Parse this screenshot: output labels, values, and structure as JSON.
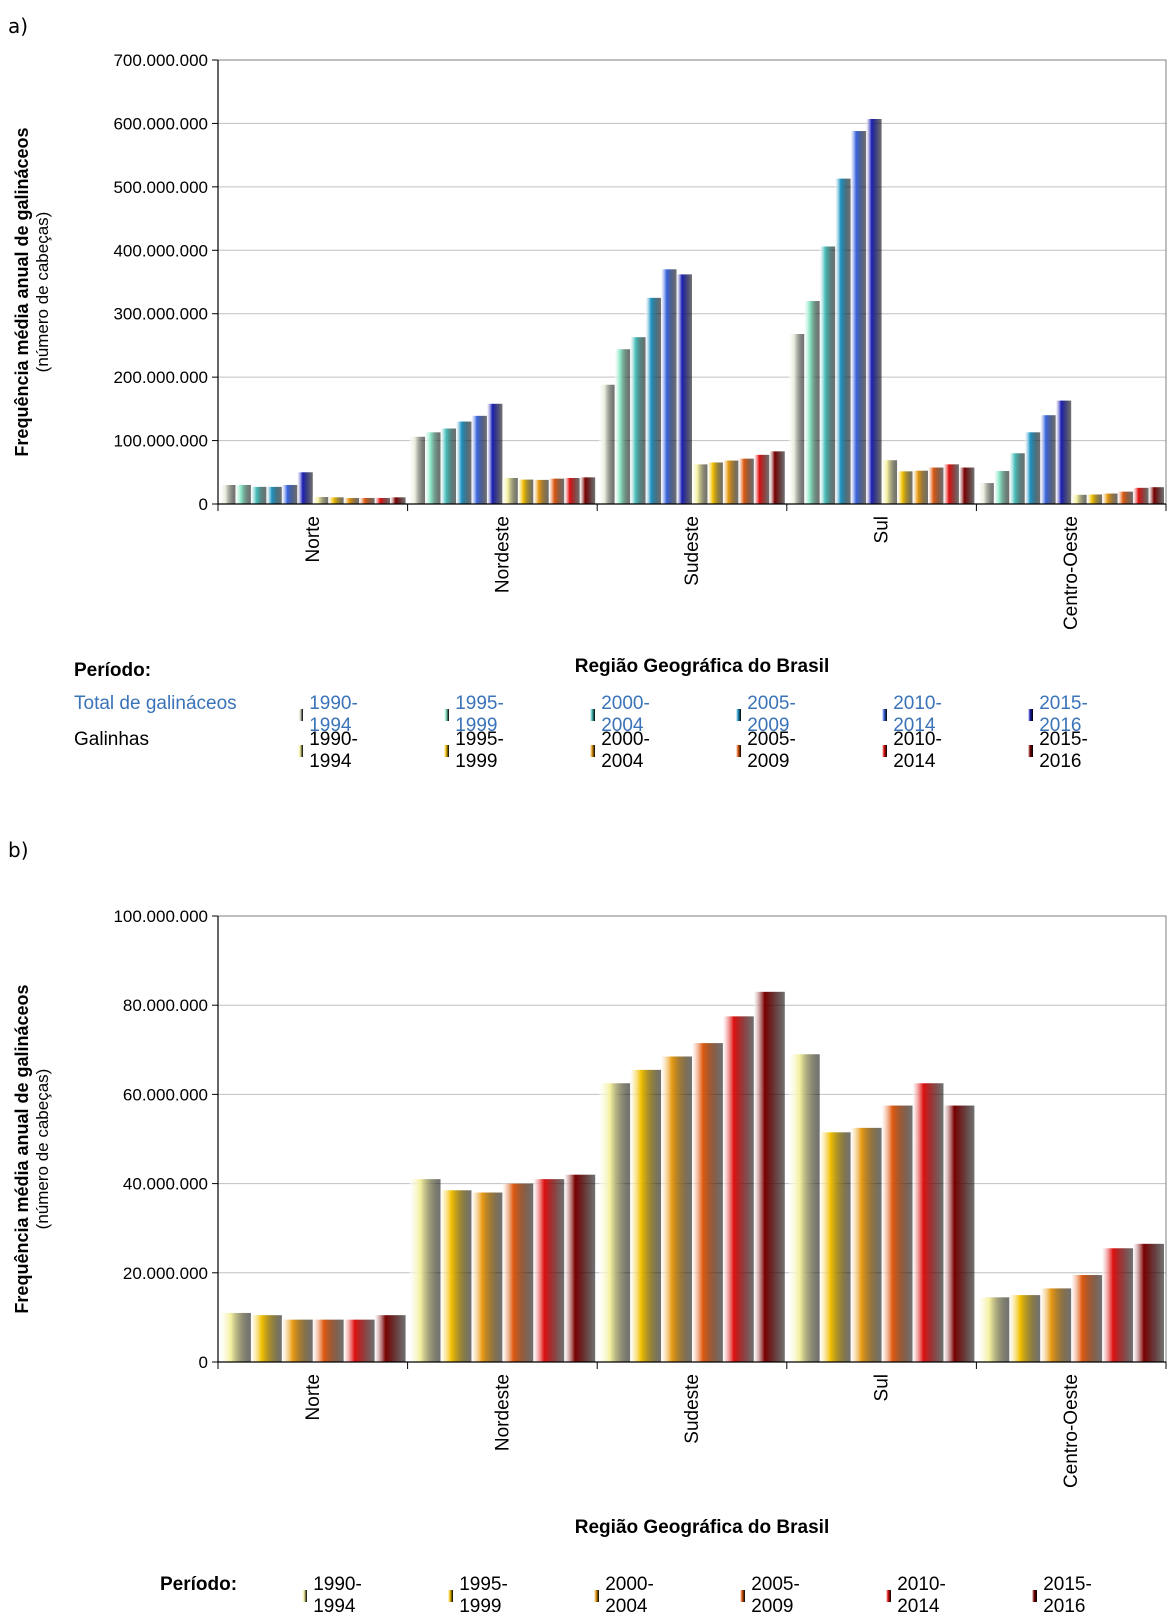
{
  "panels": [
    {
      "label": "a)",
      "legend": {
        "title": "Período:",
        "rows": [
          {
            "name": "Total de galináceos",
            "color": "#3a73b8",
            "items": [
              "1990-1994",
              "1995-1999",
              "2000-2004",
              "2005-2009",
              "2010-2014",
              "2015-2016"
            ]
          },
          {
            "name": "Galinhas",
            "color": "#000000",
            "items": [
              "1990-1994",
              "1995-1999",
              "2000-2004",
              "2005-2009",
              "2010-2014",
              "2015-2016"
            ]
          }
        ]
      }
    },
    {
      "label": "b)",
      "legend": {
        "title": "Período:",
        "rows": [
          {
            "name": "",
            "color": "#000000",
            "items": [
              "1990-1994",
              "1995-1999",
              "2000-2004",
              "2005-2009",
              "2010-2014",
              "2015-2016"
            ]
          }
        ]
      }
    }
  ],
  "palette": {
    "total": [
      "#e8eddc",
      "#8de8c8",
      "#4ac0bc",
      "#1f95c4",
      "#3a66e0",
      "#1c1fb4"
    ],
    "galinhas": [
      "#f4f0a0",
      "#f2c000",
      "#e89a12",
      "#e05a10",
      "#e01010",
      "#7a0000"
    ]
  },
  "chart_data": [
    {
      "type": "bar",
      "categories": [
        "Norte",
        "Nordeste",
        "Sudeste",
        "Sul",
        "Centro-Oeste"
      ],
      "ylabel": "Frequência média anual  de galináceos",
      "ylabel2": "(número de cabeças)",
      "xlabel": "Região Geográfica do Brasil",
      "ylim": [
        0,
        700000000
      ],
      "yticks": [
        0,
        100000000,
        200000000,
        300000000,
        400000000,
        500000000,
        600000000,
        700000000
      ],
      "ytick_labels": [
        "0",
        "100.000.000",
        "200.000.000",
        "300.000.000",
        "400.000.000",
        "500.000.000",
        "600.000.000",
        "700.000.000"
      ],
      "grid": true,
      "series": [
        {
          "name": "Total de galináceos 1990-1994",
          "values": [
            30000000,
            106000000,
            188000000,
            268000000,
            33000000
          ]
        },
        {
          "name": "Total de galináceos 1995-1999",
          "values": [
            30000000,
            113000000,
            244000000,
            320000000,
            52000000
          ]
        },
        {
          "name": "Total de galináceos 2000-2004",
          "values": [
            27000000,
            119000000,
            263000000,
            406000000,
            80000000
          ]
        },
        {
          "name": "Total de galináceos 2005-2009",
          "values": [
            27000000,
            130000000,
            325000000,
            513000000,
            113000000
          ]
        },
        {
          "name": "Total de galináceos 2010-2014",
          "values": [
            30000000,
            139000000,
            370000000,
            588000000,
            140000000
          ]
        },
        {
          "name": "Total de galináceos 2015-2016",
          "values": [
            50000000,
            158000000,
            362000000,
            607000000,
            163000000
          ]
        },
        {
          "name": "Galinhas 1990-1994",
          "values": [
            11000000,
            41000000,
            62500000,
            69000000,
            14500000
          ]
        },
        {
          "name": "Galinhas 1995-1999",
          "values": [
            10500000,
            38500000,
            65500000,
            51500000,
            15000000
          ]
        },
        {
          "name": "Galinhas 2000-2004",
          "values": [
            9500000,
            38000000,
            68500000,
            52500000,
            16500000
          ]
        },
        {
          "name": "Galinhas 2005-2009",
          "values": [
            9500000,
            40000000,
            71500000,
            57500000,
            19500000
          ]
        },
        {
          "name": "Galinhas 2010-2014",
          "values": [
            9500000,
            41000000,
            77500000,
            62500000,
            25500000
          ]
        },
        {
          "name": "Galinhas 2015-2016",
          "values": [
            10500000,
            42000000,
            83000000,
            57500000,
            26500000
          ]
        }
      ]
    },
    {
      "type": "bar",
      "categories": [
        "Norte",
        "Nordeste",
        "Sudeste",
        "Sul",
        "Centro-Oeste"
      ],
      "ylabel": "Frequência média anual  de galináceos",
      "ylabel2": "(número de cabeças)",
      "xlabel": "Região Geográfica do Brasil",
      "ylim": [
        0,
        100000000
      ],
      "yticks": [
        0,
        20000000,
        40000000,
        60000000,
        80000000,
        100000000
      ],
      "ytick_labels": [
        "0",
        "20.000.000",
        "40.000.000",
        "60.000.000",
        "80.000.000",
        "100.000.000"
      ],
      "grid": true,
      "series": [
        {
          "name": "1990-1994",
          "values": [
            11000000,
            41000000,
            62500000,
            69000000,
            14500000
          ]
        },
        {
          "name": "1995-1999",
          "values": [
            10500000,
            38500000,
            65500000,
            51500000,
            15000000
          ]
        },
        {
          "name": "2000-2004",
          "values": [
            9500000,
            38000000,
            68500000,
            52500000,
            16500000
          ]
        },
        {
          "name": "2005-2009",
          "values": [
            9500000,
            40000000,
            71500000,
            57500000,
            19500000
          ]
        },
        {
          "name": "2010-2014",
          "values": [
            9500000,
            41000000,
            77500000,
            62500000,
            25500000
          ]
        },
        {
          "name": "2015-2016",
          "values": [
            10500000,
            42000000,
            83000000,
            57500000,
            26500000
          ]
        }
      ]
    }
  ]
}
